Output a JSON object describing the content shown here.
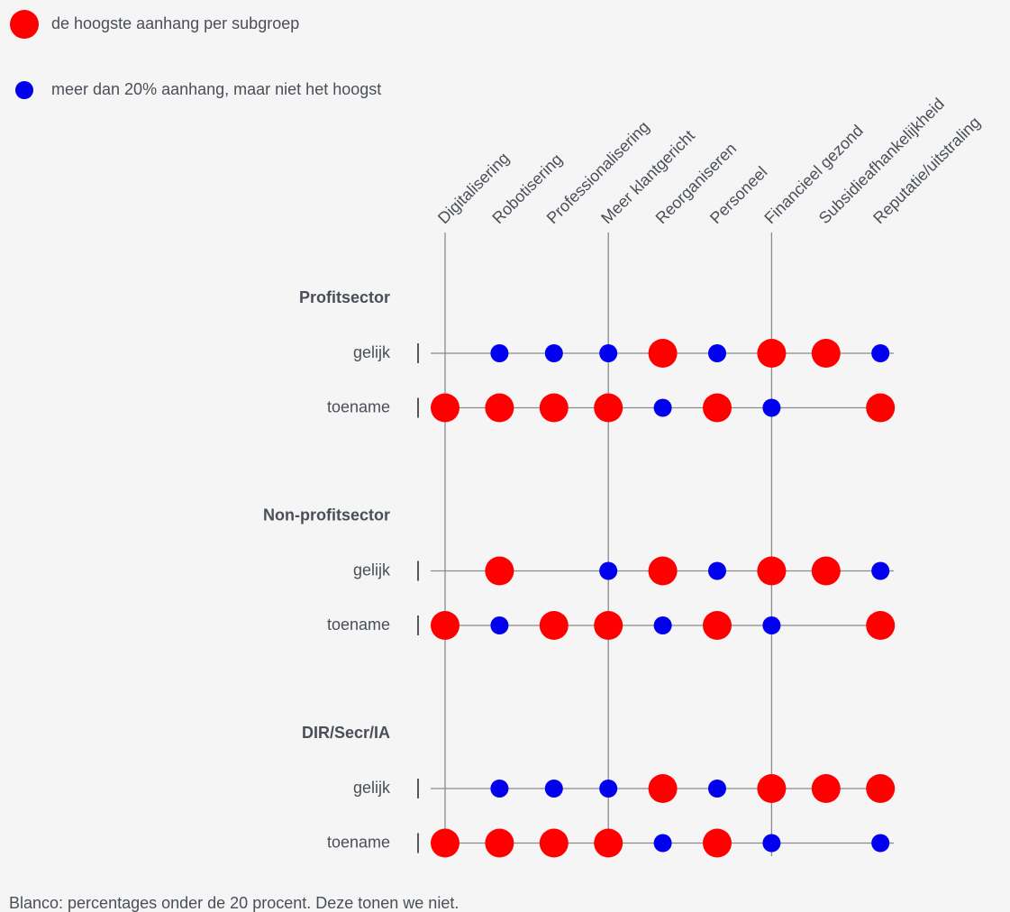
{
  "chart_data": {
    "type": "dot-matrix",
    "legend": [
      {
        "key": "high",
        "color": "#ff0000",
        "label": "de hoogste aanhang per subgroep"
      },
      {
        "key": "mid",
        "color": "#0000ee",
        "label": "meer dan 20% aanhang, maar niet het hoogst"
      }
    ],
    "categories": [
      "Digitalisering",
      "Robotisering",
      "Professionalisering",
      "Meer klantgericht",
      "Reorganiseren",
      "Personeel",
      "Financieel gezond",
      "Subsidieafhankelijkheid",
      "Reputatie/uitstraling"
    ],
    "groups": [
      {
        "name": "Profitsector",
        "rows": [
          {
            "label": "gelijk",
            "cells": [
              null,
              "mid",
              "mid",
              "mid",
              "high",
              "mid",
              "high",
              "high",
              "mid"
            ]
          },
          {
            "label": "toename",
            "cells": [
              "high",
              "high",
              "high",
              "high",
              "mid",
              "high",
              "mid",
              null,
              "high"
            ]
          }
        ]
      },
      {
        "name": "Non-profitsector",
        "rows": [
          {
            "label": "gelijk",
            "cells": [
              null,
              "high",
              null,
              "mid",
              "high",
              "mid",
              "high",
              "high",
              "mid"
            ]
          },
          {
            "label": "toename",
            "cells": [
              "high",
              "mid",
              "high",
              "high",
              "mid",
              "high",
              "mid",
              null,
              "high"
            ]
          }
        ]
      },
      {
        "name": "DIR/Secr/IA",
        "rows": [
          {
            "label": "gelijk",
            "cells": [
              null,
              "mid",
              "mid",
              "mid",
              "high",
              "mid",
              "high",
              "high",
              "high"
            ]
          },
          {
            "label": "toename",
            "cells": [
              "high",
              "high",
              "high",
              "high",
              "mid",
              "high",
              "mid",
              null,
              "mid"
            ]
          }
        ]
      }
    ],
    "footnote": "Blanco: percentages onder de 20 procent. Deze tonen we niet."
  }
}
